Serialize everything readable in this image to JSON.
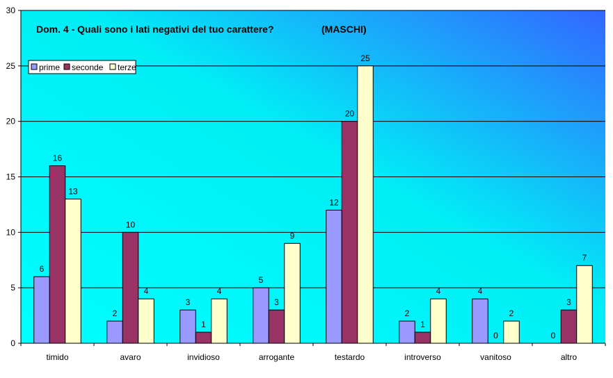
{
  "chart_data": {
    "type": "bar",
    "title": "Dom. 4 - Quali sono i lati negativi del tuo carattere?",
    "subtitle": "(MASCHI)",
    "categories": [
      "timido",
      "avaro",
      "invidioso",
      "arrogante",
      "testardo",
      "introverso",
      "vanitoso",
      "altro"
    ],
    "series": [
      {
        "name": "prime",
        "values": [
          6,
          2,
          3,
          5,
          12,
          2,
          4,
          0
        ],
        "color": "#9999FF"
      },
      {
        "name": "seconde",
        "values": [
          16,
          10,
          1,
          3,
          20,
          1,
          0,
          3
        ],
        "color": "#993366"
      },
      {
        "name": "terze",
        "values": [
          13,
          4,
          4,
          9,
          25,
          4,
          2,
          7
        ],
        "color": "#FFFFCC"
      }
    ],
    "ylim": [
      0,
      30
    ],
    "yticks": [
      0,
      5,
      10,
      15,
      20,
      25,
      30
    ],
    "grid": true,
    "legend_position": "top-left",
    "background_gradient": [
      "#00FFFF",
      "#3366FF"
    ]
  }
}
